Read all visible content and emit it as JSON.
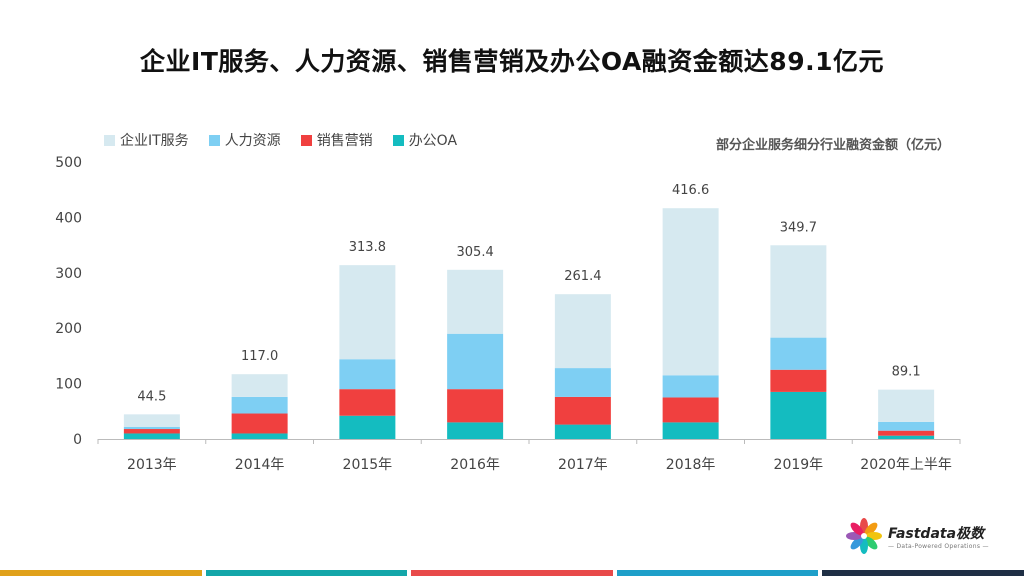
{
  "title": "企业IT服务、人力资源、销售营销及办公OA融资金额达89.1亿元",
  "chart_data": {
    "type": "bar",
    "stacked": true,
    "subtitle": "部分企业服务细分行业融资金额（亿元）",
    "categories": [
      "2013年",
      "2014年",
      "2015年",
      "2016年",
      "2017年",
      "2018年",
      "2019年",
      "2020年上半年"
    ],
    "series": [
      {
        "name": "办公OA",
        "color": "#14BCC0",
        "values": [
          10,
          10,
          42,
          30,
          26,
          30,
          85,
          6
        ]
      },
      {
        "name": "销售营销",
        "color": "#F0403F",
        "values": [
          8,
          36,
          48,
          60,
          50,
          45,
          40,
          9
        ]
      },
      {
        "name": "人力资源",
        "color": "#7ECFF3",
        "values": [
          4,
          30,
          54,
          100,
          52,
          40,
          58,
          16
        ]
      },
      {
        "name": "企业IT服务",
        "color": "#D6E9F0",
        "values": [
          22.5,
          41,
          169.8,
          115.4,
          133.4,
          301.6,
          166.7,
          58.1
        ]
      }
    ],
    "totals": [
      "44.5",
      "117.0",
      "313.8",
      "305.4",
      "261.4",
      "416.6",
      "349.7",
      "89.1"
    ],
    "legend_order": [
      "企业IT服务",
      "人力资源",
      "销售营销",
      "办公OA"
    ],
    "legend_position": "top-left",
    "ylim": [
      0,
      500
    ],
    "yticks": [
      "0",
      "100",
      "200",
      "300",
      "400",
      "500"
    ],
    "grid": false
  },
  "brand": {
    "name": "Fastdata极数",
    "tagline": "— Data-Powered Operations —"
  },
  "footer_colors": [
    "#E0A11A",
    "#14A6A9",
    "#E84A4A",
    "#1E9FC9",
    "#1F2F45"
  ]
}
